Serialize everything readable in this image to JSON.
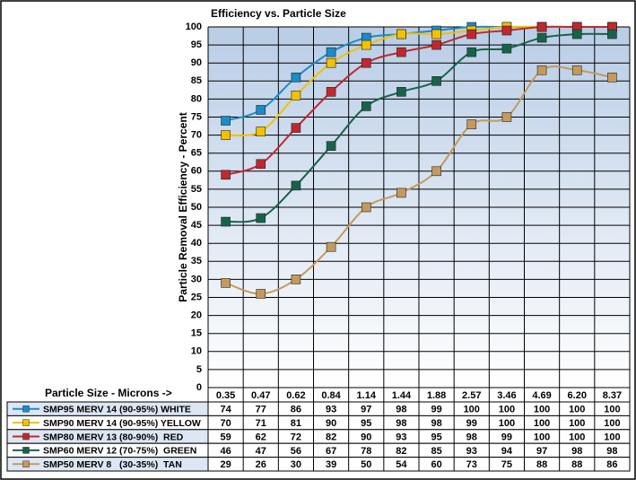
{
  "chart_data": {
    "type": "line",
    "title": "Efficiency vs. Particle Size",
    "y_label": "Particle Removal Efficiency - Percent",
    "x_label": "Particle Size - Microns ->",
    "categories": [
      "0.35",
      "0.47",
      "0.62",
      "0.84",
      "1.14",
      "1.44",
      "1.88",
      "2.57",
      "3.46",
      "4.69",
      "6.20",
      "8.37"
    ],
    "ylim": [
      0,
      100
    ],
    "yticks": [
      0,
      5,
      10,
      15,
      20,
      25,
      30,
      35,
      40,
      45,
      50,
      55,
      60,
      65,
      70,
      75,
      80,
      85,
      90,
      95,
      100
    ],
    "grid": true,
    "series": [
      {
        "name": "SMP95 MERV 14 (90-95%) WHITE",
        "color": "#1a8cc8",
        "values": [
          74,
          77,
          86,
          93,
          97,
          98,
          99,
          100,
          100,
          100,
          100,
          100
        ]
      },
      {
        "name": "SMP90 MERV 14 (90-95%) YELLOW",
        "color": "#f2c200",
        "values": [
          70,
          71,
          81,
          90,
          95,
          98,
          98,
          99,
          100,
          100,
          100,
          100
        ]
      },
      {
        "name": "SMP80 MERV 13 (80-90%)  RED",
        "color": "#c0282e",
        "values": [
          59,
          62,
          72,
          82,
          90,
          93,
          95,
          98,
          99,
          100,
          100,
          100
        ]
      },
      {
        "name": "SMP60 MERV 12 (70-75%)  GREEN",
        "color": "#17634a",
        "values": [
          46,
          47,
          56,
          67,
          78,
          82,
          85,
          93,
          94,
          97,
          98,
          98
        ]
      },
      {
        "name": "SMP50 MERV 8   (30-35%)  TAN",
        "color": "#c49a5c",
        "values": [
          29,
          26,
          30,
          39,
          50,
          54,
          60,
          73,
          75,
          88,
          88,
          86
        ]
      }
    ]
  }
}
